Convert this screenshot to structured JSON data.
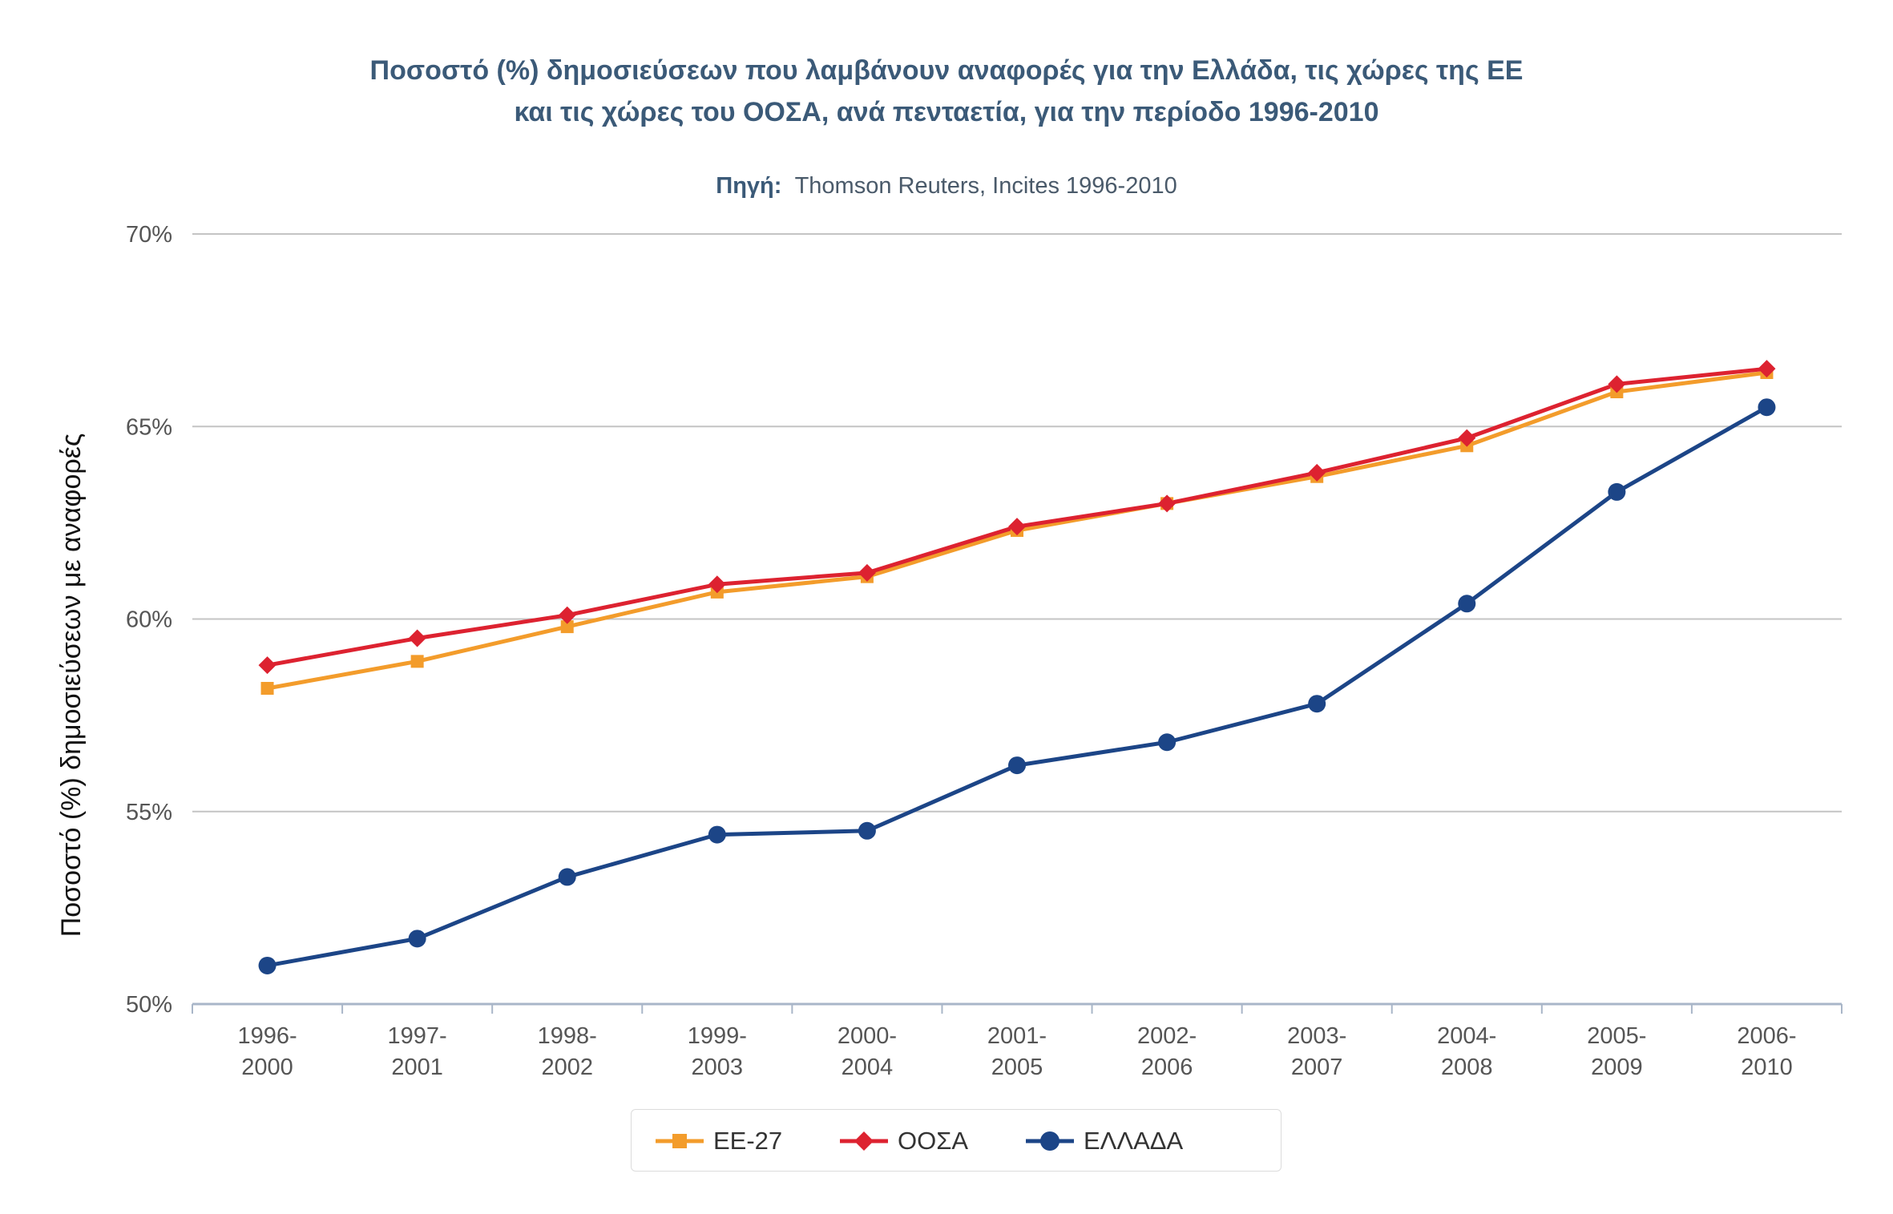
{
  "chart_data": {
    "type": "line",
    "title_line1": "Ποσοστό (%) δημοσιεύσεων που λαμβάνουν αναφορές για την Ελλάδα, τις χώρες της ΕΕ",
    "title_line2": "και τις χώρες του ΟΟΣΑ, ανά πενταετία, για την περίοδο 1996-2010",
    "source_label": "Πηγή:",
    "source_text": "Thomson Reuters, Incites 1996-2010",
    "ylabel": "Ποσοστό (%) δημοσιεύσεων με αναφορές",
    "xlabel": "",
    "ylim": [
      50,
      70
    ],
    "yticks": [
      50,
      55,
      60,
      65,
      70
    ],
    "ytick_labels": [
      "50%",
      "55%",
      "60%",
      "65%",
      "70%"
    ],
    "categories": [
      [
        "1996-",
        "2000"
      ],
      [
        "1997-",
        "2001"
      ],
      [
        "1998-",
        "2002"
      ],
      [
        "1999-",
        "2003"
      ],
      [
        "2000-",
        "2004"
      ],
      [
        "2001-",
        "2005"
      ],
      [
        "2002-",
        "2006"
      ],
      [
        "2003-",
        "2007"
      ],
      [
        "2004-",
        "2008"
      ],
      [
        "2005-",
        "2009"
      ],
      [
        "2006-",
        "2010"
      ]
    ],
    "grid": true,
    "legend_position": "bottom",
    "series": [
      {
        "name": "ΕΕ-27",
        "color": "#f39c2b",
        "marker": "square",
        "values": [
          58.2,
          58.9,
          59.8,
          60.7,
          61.1,
          62.3,
          63.0,
          63.7,
          64.5,
          65.9,
          66.4
        ]
      },
      {
        "name": "ΟΟΣΑ",
        "color": "#dd2230",
        "marker": "diamond",
        "values": [
          58.8,
          59.5,
          60.1,
          60.9,
          61.2,
          62.4,
          63.0,
          63.8,
          64.7,
          66.1,
          66.5
        ]
      },
      {
        "name": "ΕΛΛΑΔΑ",
        "color": "#1c4587",
        "marker": "circle",
        "values": [
          51.0,
          51.7,
          53.3,
          54.4,
          54.5,
          56.2,
          56.8,
          57.8,
          60.4,
          63.3,
          65.5
        ]
      }
    ]
  }
}
